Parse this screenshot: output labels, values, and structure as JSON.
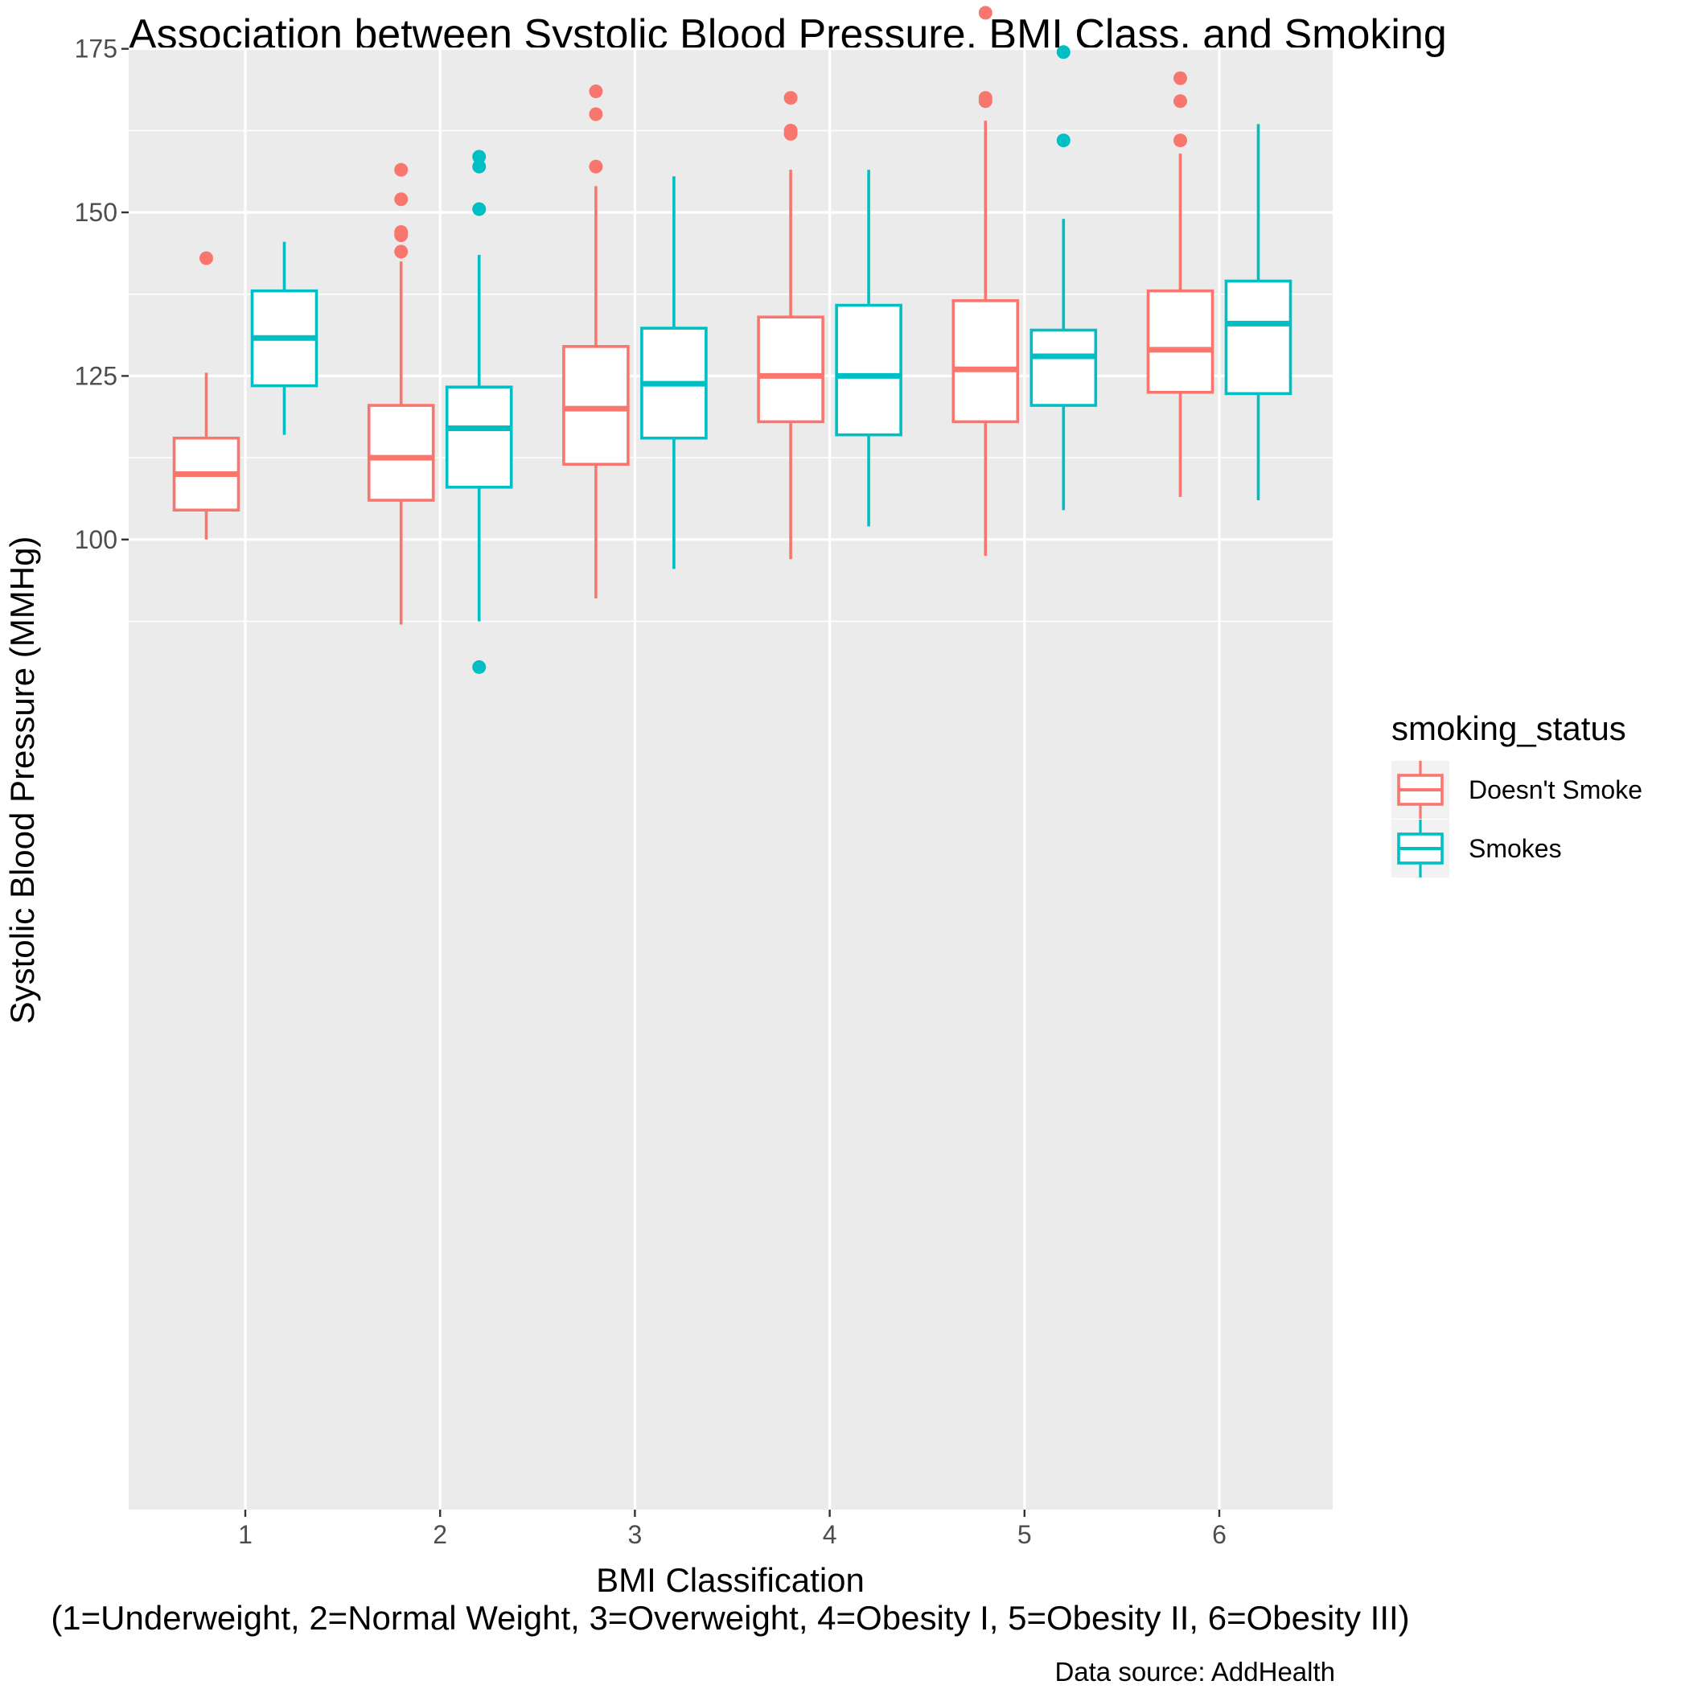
{
  "chart_data": {
    "type": "boxplot",
    "title": "Association between Systolic Blood Pressure, BMI Class, and Smoking",
    "xlabel": "BMI Classification",
    "xlabel_line2": "(1=Underweight, 2=Normal Weight, 3=Overweight, 4=Obesity I, 5=Obesity II, 6=Obesity III)",
    "ylabel": "Systolic Blood Pressure (MMHg)",
    "caption": "Data source: AddHealth",
    "categories": [
      "1",
      "2",
      "3",
      "4",
      "5",
      "6"
    ],
    "x_ticks": [
      "1",
      "2",
      "3",
      "4",
      "5",
      "6"
    ],
    "y_ticks": [
      100,
      125,
      150,
      175
    ],
    "y_minor_gridlines": [
      87.5,
      112.5,
      137.5,
      162.5
    ],
    "ylim": [
      77,
      186
    ],
    "grid": true,
    "legend": {
      "title": "smoking_status",
      "position": "right"
    },
    "series": [
      {
        "name": "Doesn't Smoke",
        "color": "#F8766D",
        "boxes": [
          {
            "category": "1",
            "whisker_low": 100,
            "q1": 104.5,
            "median": 110,
            "q3": 115.5,
            "whisker_high": 125.5,
            "outliers": [
              143
            ]
          },
          {
            "category": "2",
            "whisker_low": 87,
            "q1": 106,
            "median": 112.5,
            "q3": 120.5,
            "whisker_high": 142.5,
            "outliers": [
              144,
              146.5,
              147,
              152,
              156.5
            ]
          },
          {
            "category": "3",
            "whisker_low": 91,
            "q1": 111.5,
            "median": 120,
            "q3": 129.5,
            "whisker_high": 154,
            "outliers": [
              157,
              165,
              168.5
            ]
          },
          {
            "category": "4",
            "whisker_low": 97,
            "q1": 118,
            "median": 125,
            "q3": 134,
            "whisker_high": 156.5,
            "outliers": [
              162,
              162.5,
              167.5
            ]
          },
          {
            "category": "5",
            "whisker_low": 97.5,
            "q1": 118,
            "median": 126,
            "q3": 136.5,
            "whisker_high": 164,
            "outliers": [
              167,
              167.5,
              180.5
            ]
          },
          {
            "category": "6",
            "whisker_low": 106.5,
            "q1": 122.5,
            "median": 129,
            "q3": 138,
            "whisker_high": 159,
            "outliers": [
              161,
              167,
              170.5
            ]
          }
        ]
      },
      {
        "name": "Smokes",
        "color": "#00BFC4",
        "boxes": [
          {
            "category": "1",
            "whisker_low": 116,
            "q1": 123.5,
            "median": 130.8,
            "q3": 138,
            "whisker_high": 145.5,
            "outliers": []
          },
          {
            "category": "2",
            "whisker_low": 87.5,
            "q1": 108,
            "median": 117,
            "q3": 123.3,
            "whisker_high": 143.5,
            "outliers": [
              80.5,
              150.5,
              157,
              158.5
            ]
          },
          {
            "category": "3",
            "whisker_low": 95.5,
            "q1": 115.5,
            "median": 123.8,
            "q3": 132.3,
            "whisker_high": 155.5,
            "outliers": []
          },
          {
            "category": "4",
            "whisker_low": 102,
            "q1": 116,
            "median": 125,
            "q3": 135.8,
            "whisker_high": 156.5,
            "outliers": []
          },
          {
            "category": "5",
            "whisker_low": 104.5,
            "q1": 120.5,
            "median": 128,
            "q3": 132,
            "whisker_high": 149,
            "outliers": [
              161,
              174.5
            ]
          },
          {
            "category": "6",
            "whisker_low": 106,
            "q1": 122.3,
            "median": 133,
            "q3": 139.5,
            "whisker_high": 163.5,
            "outliers": []
          }
        ]
      }
    ]
  }
}
